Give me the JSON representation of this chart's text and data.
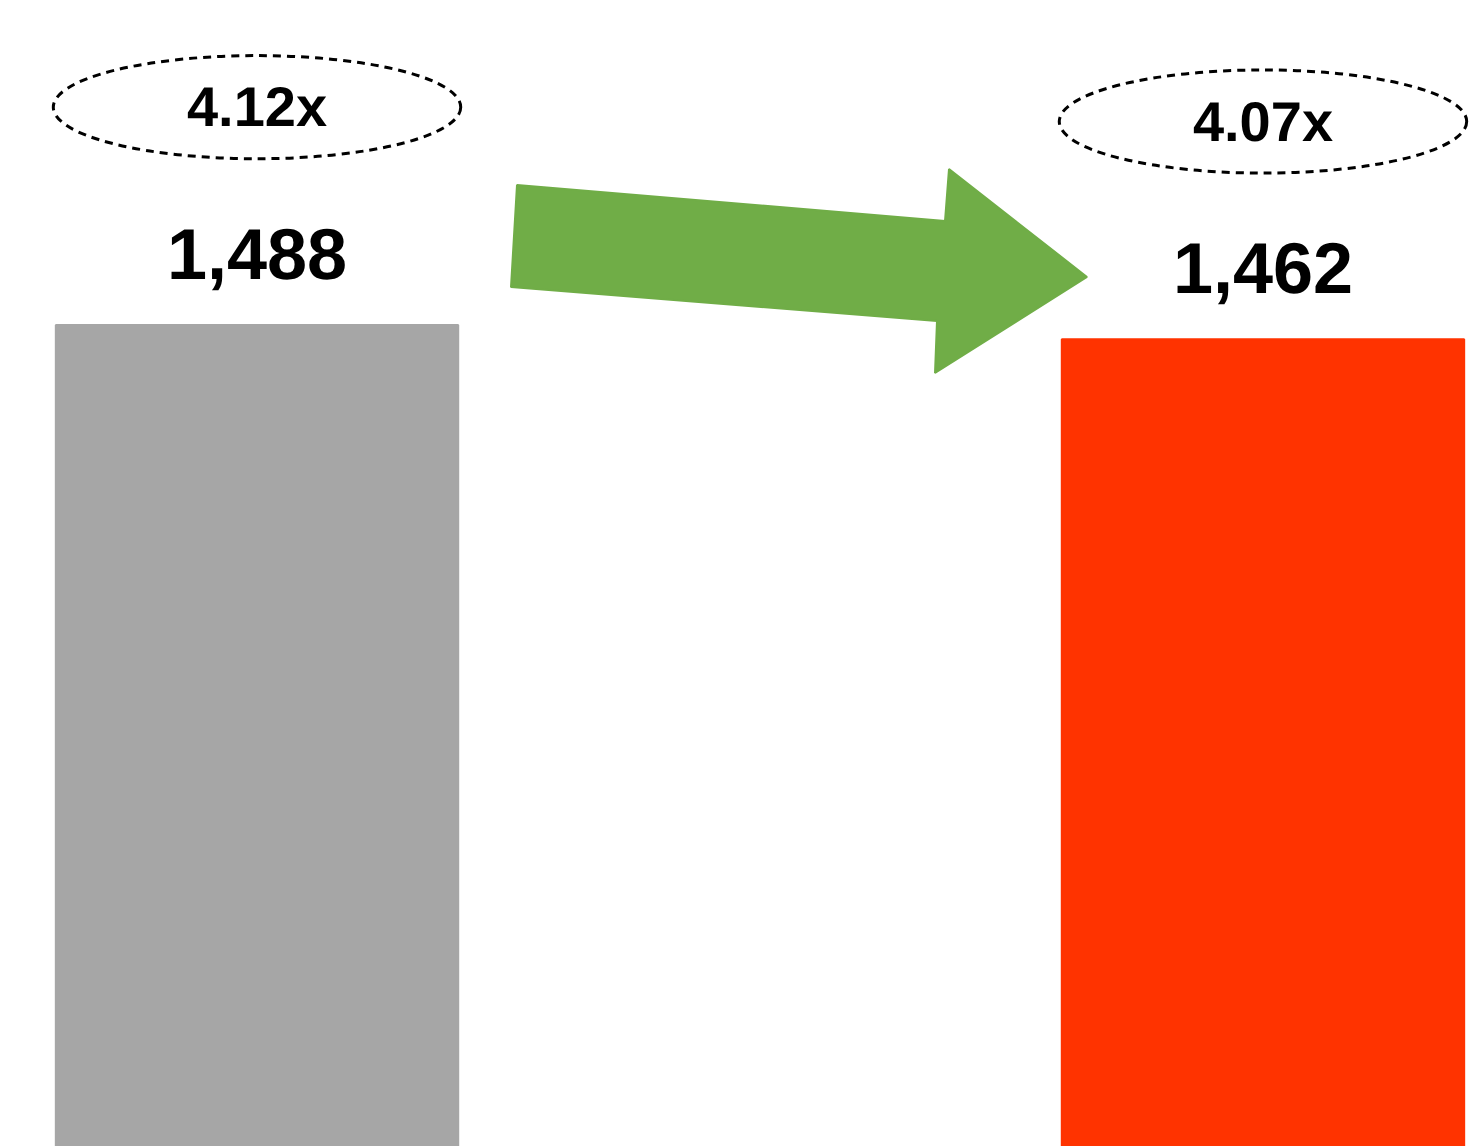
{
  "chart_data": {
    "type": "bar",
    "categories": [
      null,
      null
    ],
    "values": [
      1488,
      1462
    ],
    "colors": [
      "#a6a6a6",
      "#ff3300"
    ],
    "data_labels": true,
    "value_labels": [
      "1,488",
      "1,462"
    ],
    "annotations": [
      "4.12x",
      "4.07x"
    ],
    "grid": false,
    "tick_labels": false
  }
}
